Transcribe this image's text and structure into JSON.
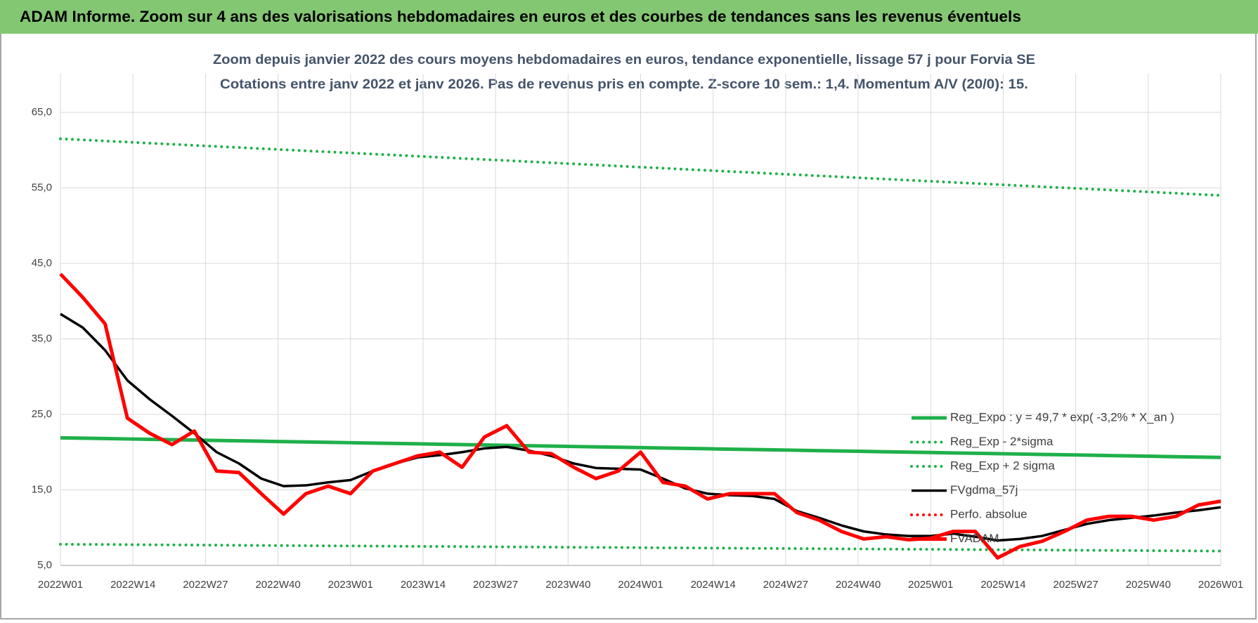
{
  "header": {
    "title": "ADAM Informe. Zoom sur 4 ans des valorisations hebdomadaires en euros et des courbes de tendances sans les revenus éventuels"
  },
  "chart_data": {
    "type": "line",
    "title": "Zoom depuis janvier 2022 des cours moyens hebdomadaires en euros, tendance exponentielle, lissage 57 j pour Forvia SE",
    "subtitle": "Cotations entre janv 2022 et janv 2026. Pas de revenus pris en compte. Z-score 10 sem.: 1,4. Momentum A/V (20/0): 15.",
    "x": [
      0,
      4,
      8,
      12,
      16,
      20,
      24,
      28,
      32,
      36,
      40,
      44,
      48,
      52,
      56,
      60,
      64,
      68,
      72,
      76,
      80,
      84,
      88,
      92,
      96,
      100,
      104,
      108,
      112,
      116,
      120,
      124,
      128,
      132,
      136,
      140,
      144,
      148,
      152,
      156,
      160,
      164,
      168,
      172,
      176,
      180,
      184,
      188,
      192,
      196,
      200,
      204,
      208
    ],
    "xlim": [
      0,
      208
    ],
    "xticks": [
      {
        "value": 0,
        "label": "2022W01"
      },
      {
        "value": 13,
        "label": "2022W14"
      },
      {
        "value": 26,
        "label": "2022W27"
      },
      {
        "value": 39,
        "label": "2022W40"
      },
      {
        "value": 52,
        "label": "2023W01"
      },
      {
        "value": 65,
        "label": "2023W14"
      },
      {
        "value": 78,
        "label": "2023W27"
      },
      {
        "value": 91,
        "label": "2023W40"
      },
      {
        "value": 104,
        "label": "2024W01"
      },
      {
        "value": 117,
        "label": "2024W14"
      },
      {
        "value": 130,
        "label": "2024W27"
      },
      {
        "value": 143,
        "label": "2024W40"
      },
      {
        "value": 156,
        "label": "2025W01"
      },
      {
        "value": 169,
        "label": "2025W14"
      },
      {
        "value": 182,
        "label": "2025W27"
      },
      {
        "value": 195,
        "label": "2025W40"
      },
      {
        "value": 208,
        "label": "2026W01"
      }
    ],
    "ylim": [
      5,
      65
    ],
    "yticks": [
      {
        "value": 5,
        "label": "5,0"
      },
      {
        "value": 15,
        "label": "15,0"
      },
      {
        "value": 25,
        "label": "25,0"
      },
      {
        "value": 35,
        "label": "35,0"
      },
      {
        "value": 45,
        "label": "45,0"
      },
      {
        "value": 55,
        "label": "55,0"
      },
      {
        "value": 65,
        "label": "65,0"
      }
    ],
    "grid": true,
    "legend": "right",
    "series": [
      {
        "name": "Reg_Expo : y = 49,7 * exp( -3,2% *  X_an )",
        "color": "#1fb04a",
        "style": "solid",
        "values": [
          21.9,
          21.85,
          21.8,
          21.75,
          21.7,
          21.65,
          21.6,
          21.55,
          21.5,
          21.45,
          21.4,
          21.35,
          21.3,
          21.25,
          21.2,
          21.15,
          21.1,
          21.05,
          21.0,
          20.95,
          20.9,
          20.85,
          20.8,
          20.75,
          20.7,
          20.65,
          20.6,
          20.55,
          20.5,
          20.45,
          20.4,
          20.35,
          20.3,
          20.25,
          20.2,
          20.15,
          20.1,
          20.05,
          20.0,
          19.95,
          19.9,
          19.85,
          19.8,
          19.75,
          19.7,
          19.65,
          19.6,
          19.55,
          19.5,
          19.45,
          19.4,
          19.35,
          19.3
        ]
      },
      {
        "name": "Reg_Exp - 2*sigma",
        "color": "#1fb04a",
        "style": "dotted",
        "values": [
          7.8,
          7.78,
          7.77,
          7.75,
          7.73,
          7.71,
          7.7,
          7.68,
          7.66,
          7.64,
          7.63,
          7.61,
          7.59,
          7.58,
          7.56,
          7.54,
          7.52,
          7.51,
          7.49,
          7.47,
          7.45,
          7.44,
          7.42,
          7.4,
          7.38,
          7.37,
          7.35,
          7.33,
          7.32,
          7.3,
          7.28,
          7.26,
          7.25,
          7.23,
          7.21,
          7.19,
          7.18,
          7.16,
          7.14,
          7.13,
          7.11,
          7.09,
          7.07,
          7.06,
          7.04,
          7.02,
          7.0,
          6.99,
          6.97,
          6.95,
          6.94,
          6.92,
          6.9
        ]
      },
      {
        "name": "Reg_Exp + 2 sigma",
        "color": "#1fb04a",
        "style": "dotted",
        "values": [
          61.5,
          61.36,
          61.21,
          61.07,
          60.92,
          60.78,
          60.63,
          60.49,
          60.35,
          60.2,
          60.06,
          59.91,
          59.77,
          59.63,
          59.48,
          59.34,
          59.19,
          59.05,
          58.9,
          58.76,
          58.62,
          58.47,
          58.33,
          58.18,
          58.04,
          57.89,
          57.75,
          57.61,
          57.46,
          57.32,
          57.17,
          57.03,
          56.88,
          56.74,
          56.6,
          56.45,
          56.31,
          56.16,
          56.02,
          55.88,
          55.73,
          55.59,
          55.44,
          55.3,
          55.15,
          55.01,
          54.87,
          54.72,
          54.58,
          54.43,
          54.29,
          54.14,
          54.0
        ]
      },
      {
        "name": "FVgdma_57j",
        "color": "#000000",
        "style": "solid",
        "values": [
          38.3,
          36.5,
          33.5,
          29.5,
          27,
          24.8,
          22.5,
          20,
          18.5,
          16.5,
          15.5,
          15.6,
          16,
          16.3,
          17.5,
          18.5,
          19.3,
          19.6,
          20,
          20.5,
          20.7,
          20.2,
          19.5,
          18.5,
          17.9,
          17.8,
          17.7,
          16.5,
          15.2,
          14.5,
          14.3,
          14.2,
          13.8,
          12.2,
          11.3,
          10.3,
          9.5,
          9.1,
          8.9,
          8.9,
          9.2,
          8.8,
          8.3,
          8.5,
          8.9,
          9.7,
          10.5,
          11,
          11.3,
          11.6,
          12,
          12.3,
          12.7
        ]
      },
      {
        "name": "Perfo. absolue",
        "color": "#ff0000",
        "style": "dotted",
        "values": [
          null,
          null,
          null,
          null,
          null,
          null,
          null,
          null,
          null,
          null,
          null,
          null,
          null,
          null,
          null,
          null,
          null,
          null,
          null,
          null,
          null,
          null,
          null,
          null,
          null,
          null,
          null,
          null,
          null,
          null,
          null,
          null,
          null,
          null,
          null,
          null,
          null,
          null,
          null,
          null,
          null,
          null,
          null,
          null,
          null,
          null,
          null,
          null,
          null,
          null,
          null,
          null,
          null
        ]
      },
      {
        "name": "FVADAM",
        "color": "#ff0000",
        "style": "solid",
        "values": [
          43.6,
          40.5,
          37,
          24.5,
          22.5,
          21,
          22.8,
          17.5,
          17.3,
          14.5,
          11.8,
          14.5,
          15.5,
          14.5,
          17.5,
          18.5,
          19.5,
          20,
          18,
          22,
          23.5,
          20,
          19.8,
          18,
          16.5,
          17.5,
          20,
          16,
          15.5,
          13.8,
          14.5,
          14.5,
          14.5,
          12,
          11,
          9.5,
          8.5,
          8.8,
          8.4,
          8.6,
          9.5,
          9.5,
          6,
          7.5,
          8.2,
          9.5,
          11,
          11.5,
          11.5,
          11,
          11.5,
          13,
          13.5
        ]
      }
    ]
  }
}
